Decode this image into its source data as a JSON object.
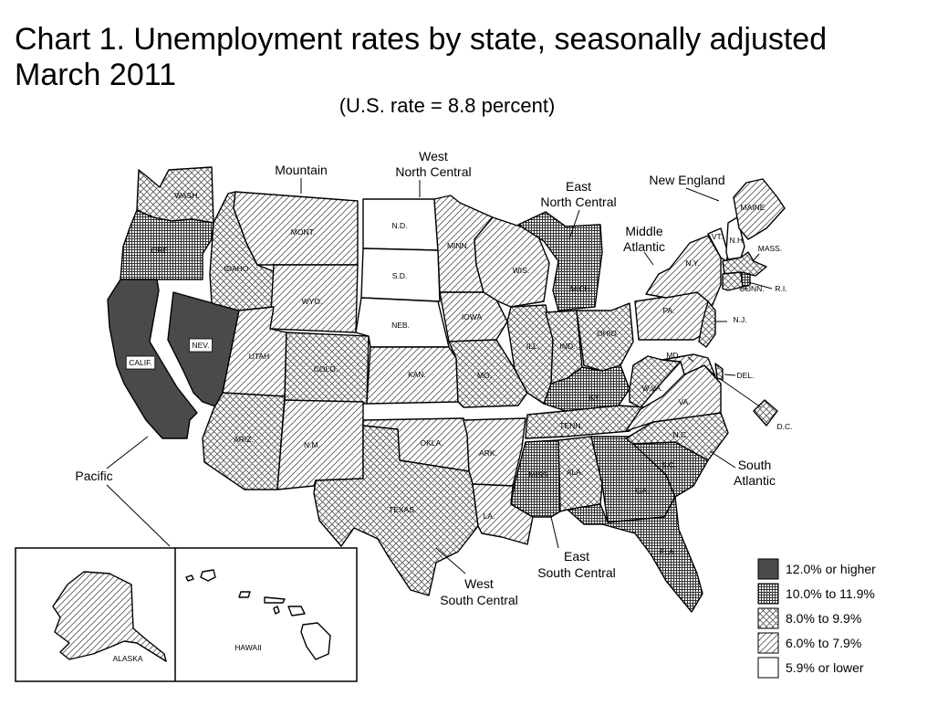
{
  "title_line1": "Chart 1. Unemployment rates by state, seasonally adjusted",
  "title_line2": "March 2011",
  "subtitle": "(U.S. rate = 8.8 percent)",
  "legend": [
    {
      "id": "c12",
      "label": "12.0% or higher",
      "fill": "#4a4a4a"
    },
    {
      "id": "c10",
      "label": "10.0% to 11.9%",
      "fill": "pattern-grid"
    },
    {
      "id": "c8",
      "label": "8.0% to 9.9%",
      "fill": "pattern-crosshatch"
    },
    {
      "id": "c6",
      "label": "6.0% to 7.9%",
      "fill": "pattern-diagonal"
    },
    {
      "id": "c5",
      "label": "5.9% or lower",
      "fill": "#ffffff"
    }
  ],
  "regions": {
    "mountain": "Mountain",
    "wnc1": "West",
    "wnc2": "North Central",
    "enc1": "East",
    "enc2": "North Central",
    "ne": "New England",
    "ma1": "Middle",
    "ma2": "Atlantic",
    "sa1": "South",
    "sa2": "Atlantic",
    "pac": "Pacific",
    "esc1": "East",
    "esc2": "South Central",
    "wsc1": "West",
    "wsc2": "South Central"
  },
  "states": {
    "WA": {
      "label": "WASH.",
      "category": "8.0% to 9.9%"
    },
    "OR": {
      "label": "ORE.",
      "category": "10.0% to 11.9%"
    },
    "CA": {
      "label": "CALIF.",
      "category": "12.0% or higher"
    },
    "NV": {
      "label": "NEV.",
      "category": "12.0% or higher"
    },
    "ID": {
      "label": "IDAHO",
      "category": "8.0% to 9.9%"
    },
    "MT": {
      "label": "MONT.",
      "category": "6.0% to 7.9%"
    },
    "WY": {
      "label": "WYO.",
      "category": "6.0% to 7.9%"
    },
    "UT": {
      "label": "UTAH",
      "category": "6.0% to 7.9%"
    },
    "CO": {
      "label": "COLO.",
      "category": "8.0% to 9.9%"
    },
    "AZ": {
      "label": "ARIZ.",
      "category": "8.0% to 9.9%"
    },
    "NM": {
      "label": "N.M.",
      "category": "6.0% to 7.9%"
    },
    "ND": {
      "label": "N.D.",
      "category": "5.9% or lower"
    },
    "SD": {
      "label": "S.D.",
      "category": "5.9% or lower"
    },
    "NE": {
      "label": "NEB.",
      "category": "5.9% or lower"
    },
    "KS": {
      "label": "KAN.",
      "category": "6.0% to 7.9%"
    },
    "MN": {
      "label": "MINN.",
      "category": "6.0% to 7.9%"
    },
    "IA": {
      "label": "IOWA",
      "category": "6.0% to 7.9%"
    },
    "MO": {
      "label": "MO.",
      "category": "8.0% to 9.9%"
    },
    "WI": {
      "label": "WIS.",
      "category": "6.0% to 7.9%"
    },
    "IL": {
      "label": "ILL.",
      "category": "8.0% to 9.9%"
    },
    "IN": {
      "label": "IND.",
      "category": "8.0% to 9.9%"
    },
    "MI": {
      "label": "MICH.",
      "category": "10.0% to 11.9%"
    },
    "OH": {
      "label": "OHIO",
      "category": "8.0% to 9.9%"
    },
    "KY": {
      "label": "KY.",
      "category": "10.0% to 11.9%"
    },
    "TN": {
      "label": "TENN.",
      "category": "8.0% to 9.9%"
    },
    "OK": {
      "label": "OKLA.",
      "category": "6.0% to 7.9%"
    },
    "AR": {
      "label": "ARK.",
      "category": "6.0% to 7.9%"
    },
    "TX": {
      "label": "TEXAS",
      "category": "8.0% to 9.9%"
    },
    "LA": {
      "label": "LA.",
      "category": "6.0% to 7.9%"
    },
    "MS": {
      "label": "MISS.",
      "category": "10.0% to 11.9%"
    },
    "AL": {
      "label": "ALA.",
      "category": "8.0% to 9.9%"
    },
    "GA": {
      "label": "GA.",
      "category": "10.0% to 11.9%"
    },
    "FL": {
      "label": "FLA.",
      "category": "10.0% to 11.9%"
    },
    "SC": {
      "label": "S.C.",
      "category": "10.0% to 11.9%"
    },
    "NC": {
      "label": "N.C.",
      "category": "8.0% to 9.9%"
    },
    "VA": {
      "label": "VA.",
      "category": "6.0% to 7.9%"
    },
    "WV": {
      "label": "W.VA.",
      "category": "8.0% to 9.9%"
    },
    "MD": {
      "label": "MD.",
      "category": "6.0% to 7.9%"
    },
    "DE": {
      "label": "DEL.",
      "category": "8.0% to 9.9%"
    },
    "DC": {
      "label": "D.C.",
      "category": "8.0% to 9.9%"
    },
    "PA": {
      "label": "PA.",
      "category": "6.0% to 7.9%"
    },
    "NY": {
      "label": "N.Y.",
      "category": "6.0% to 7.9%"
    },
    "NJ": {
      "label": "N.J.",
      "category": "8.0% to 9.9%"
    },
    "CT": {
      "label": "CONN.",
      "category": "8.0% to 9.9%"
    },
    "RI": {
      "label": "R.I.",
      "category": "10.0% to 11.9%"
    },
    "MA": {
      "label": "MASS.",
      "category": "8.0% to 9.9%"
    },
    "VT": {
      "label": "VT.",
      "category": "5.9% or lower"
    },
    "NH": {
      "label": "N.H.",
      "category": "5.9% or lower"
    },
    "ME": {
      "label": "MAINE",
      "category": "6.0% to 7.9%"
    },
    "AK": {
      "label": "ALASKA",
      "category": "6.0% to 7.9%"
    },
    "HI": {
      "label": "HAWAII",
      "category": "5.9% or lower"
    }
  }
}
